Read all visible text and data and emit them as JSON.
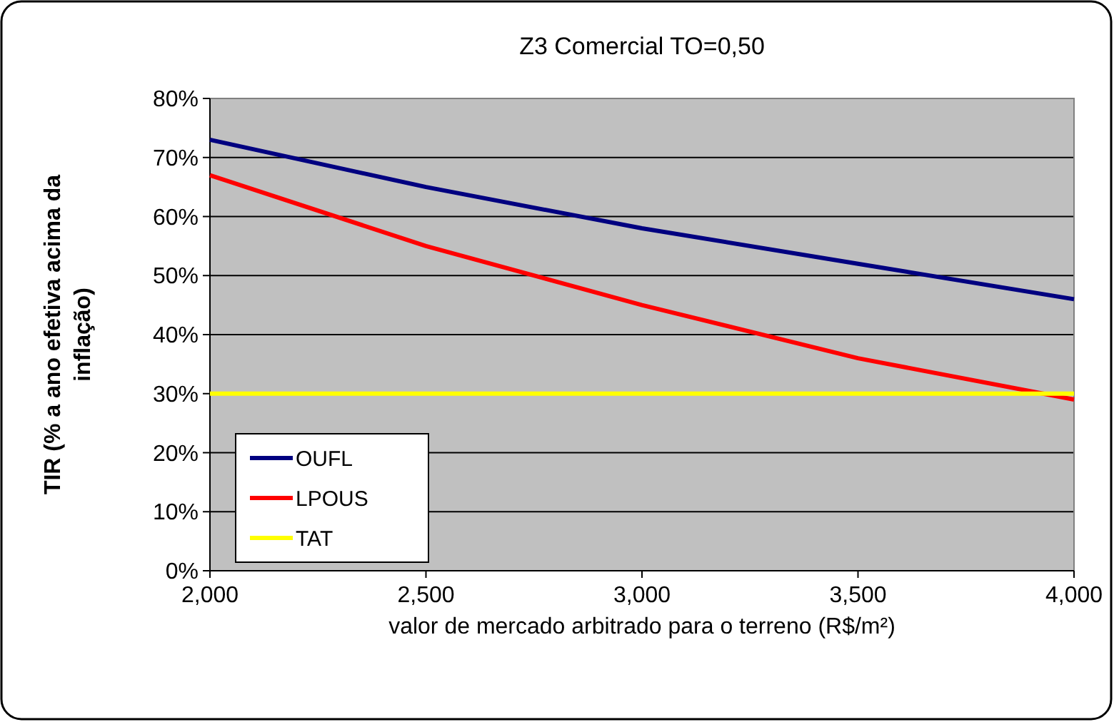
{
  "chart_data": {
    "type": "line",
    "title": "Z3 Comercial TO=0,50",
    "xlabel": "valor de mercado arbitrado para o terreno  (R$/m²)",
    "ylabel": "TIR (% a ano efetiva acima da inflação)",
    "x": [
      2000,
      2500,
      3000,
      3500,
      4000
    ],
    "series": [
      {
        "name": "OUFL",
        "color": "#000080",
        "values": [
          73,
          65,
          58,
          52,
          46
        ]
      },
      {
        "name": "LPOUS",
        "color": "#ff0000",
        "values": [
          67,
          55,
          45,
          36,
          29
        ]
      },
      {
        "name": "TAT",
        "color": "#ffff00",
        "values": [
          30,
          30,
          30,
          30,
          30
        ]
      }
    ],
    "xlim": [
      2000,
      4000
    ],
    "xticks": [
      {
        "value": 2000,
        "label": "2,000"
      },
      {
        "value": 2500,
        "label": "2,500"
      },
      {
        "value": 3000,
        "label": "3,000"
      },
      {
        "value": 3500,
        "label": "3,500"
      },
      {
        "value": 4000,
        "label": "4,000"
      }
    ],
    "ylim": [
      0,
      80
    ],
    "yticks": [
      {
        "value": 0,
        "label": "0%"
      },
      {
        "value": 10,
        "label": "10%"
      },
      {
        "value": 20,
        "label": "20%"
      },
      {
        "value": 30,
        "label": "30%"
      },
      {
        "value": 40,
        "label": "40%"
      },
      {
        "value": 50,
        "label": "50%"
      },
      {
        "value": 60,
        "label": "60%"
      },
      {
        "value": 70,
        "label": "70%"
      },
      {
        "value": 80,
        "label": "80%"
      }
    ],
    "grid": "y",
    "legend": "bottom left",
    "marker": "none",
    "line_style": "solid"
  }
}
